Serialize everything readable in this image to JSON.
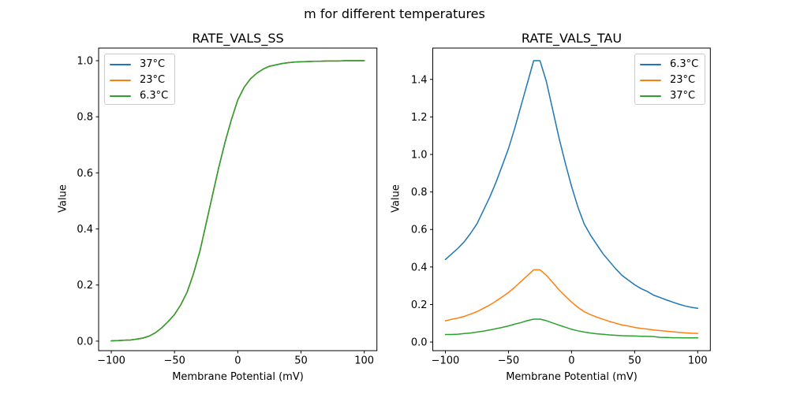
{
  "figure": {
    "suptitle": "m for different temperatures",
    "background_color": "#ffffff",
    "text_color": "#000000",
    "legend_border_color": "#cccccc"
  },
  "chart_data": [
    {
      "type": "line",
      "title": "RATE_VALS_SS",
      "xlabel": "Membrane Potential (mV)",
      "ylabel": "Value",
      "legend_position": "upper-left",
      "grid": false,
      "xlim": [
        -110,
        110
      ],
      "ylim": [
        -0.034,
        1.045
      ],
      "xticks": [
        -100,
        -50,
        0,
        50,
        100
      ],
      "yticks": [
        0.0,
        0.2,
        0.4,
        0.6,
        0.8,
        1.0
      ],
      "x": [
        -100,
        -95,
        -90,
        -85,
        -80,
        -75,
        -70,
        -65,
        -60,
        -55,
        -50,
        -45,
        -40,
        -35,
        -30,
        -25,
        -20,
        -15,
        -10,
        -5,
        0,
        5,
        10,
        15,
        20,
        25,
        30,
        35,
        40,
        45,
        50,
        55,
        60,
        65,
        70,
        75,
        80,
        85,
        90,
        95,
        100
      ],
      "series": [
        {
          "name": "37°C",
          "color": "#1f77b4",
          "values": [
            0.001,
            0.002,
            0.003,
            0.004,
            0.007,
            0.011,
            0.018,
            0.03,
            0.048,
            0.07,
            0.095,
            0.13,
            0.175,
            0.24,
            0.32,
            0.42,
            0.52,
            0.62,
            0.71,
            0.79,
            0.86,
            0.905,
            0.935,
            0.955,
            0.97,
            0.98,
            0.985,
            0.99,
            0.993,
            0.995,
            0.996,
            0.997,
            0.998,
            0.998,
            0.999,
            0.999,
            0.999,
            1.0,
            1.0,
            1.0,
            1.0
          ]
        },
        {
          "name": "23°C",
          "color": "#ff7f0e",
          "values": [
            0.001,
            0.002,
            0.003,
            0.004,
            0.007,
            0.011,
            0.018,
            0.03,
            0.048,
            0.07,
            0.095,
            0.13,
            0.175,
            0.24,
            0.32,
            0.42,
            0.52,
            0.62,
            0.71,
            0.79,
            0.86,
            0.905,
            0.935,
            0.955,
            0.97,
            0.98,
            0.985,
            0.99,
            0.993,
            0.995,
            0.996,
            0.997,
            0.998,
            0.998,
            0.999,
            0.999,
            0.999,
            1.0,
            1.0,
            1.0,
            1.0
          ]
        },
        {
          "name": "6.3°C",
          "color": "#2ca02c",
          "values": [
            0.001,
            0.002,
            0.003,
            0.004,
            0.007,
            0.011,
            0.018,
            0.03,
            0.048,
            0.07,
            0.095,
            0.13,
            0.175,
            0.24,
            0.32,
            0.42,
            0.52,
            0.62,
            0.71,
            0.79,
            0.86,
            0.905,
            0.935,
            0.955,
            0.97,
            0.98,
            0.985,
            0.99,
            0.993,
            0.995,
            0.996,
            0.997,
            0.998,
            0.998,
            0.999,
            0.999,
            0.999,
            1.0,
            1.0,
            1.0,
            1.0
          ]
        }
      ]
    },
    {
      "type": "line",
      "title": "RATE_VALS_TAU",
      "xlabel": "Membrane Potential (mV)",
      "ylabel": "Value",
      "legend_position": "upper-right",
      "grid": false,
      "xlim": [
        -110,
        110
      ],
      "ylim": [
        -0.046,
        1.567
      ],
      "xticks": [
        -100,
        -50,
        0,
        50,
        100
      ],
      "yticks": [
        0.0,
        0.2,
        0.4,
        0.6,
        0.8,
        1.0,
        1.2,
        1.4
      ],
      "x": [
        -100,
        -95,
        -90,
        -85,
        -80,
        -75,
        -70,
        -65,
        -60,
        -55,
        -50,
        -45,
        -40,
        -35,
        -30,
        -25,
        -20,
        -15,
        -10,
        -5,
        0,
        5,
        10,
        15,
        20,
        25,
        30,
        35,
        40,
        45,
        50,
        55,
        60,
        65,
        70,
        75,
        80,
        85,
        90,
        95,
        100
      ],
      "series": [
        {
          "name": "6.3°C",
          "color": "#1f77b4",
          "values": [
            0.44,
            0.47,
            0.5,
            0.535,
            0.58,
            0.63,
            0.7,
            0.77,
            0.85,
            0.94,
            1.03,
            1.14,
            1.26,
            1.38,
            1.5,
            1.5,
            1.39,
            1.24,
            1.09,
            0.955,
            0.83,
            0.72,
            0.63,
            0.57,
            0.52,
            0.47,
            0.43,
            0.39,
            0.355,
            0.33,
            0.305,
            0.285,
            0.27,
            0.25,
            0.238,
            0.225,
            0.213,
            0.202,
            0.192,
            0.185,
            0.18
          ]
        },
        {
          "name": "23°C",
          "color": "#ff7f0e",
          "values": [
            0.113,
            0.121,
            0.128,
            0.137,
            0.149,
            0.162,
            0.179,
            0.197,
            0.218,
            0.241,
            0.264,
            0.292,
            0.323,
            0.354,
            0.385,
            0.385,
            0.356,
            0.318,
            0.279,
            0.245,
            0.213,
            0.185,
            0.162,
            0.146,
            0.133,
            0.121,
            0.11,
            0.1,
            0.091,
            0.085,
            0.078,
            0.073,
            0.069,
            0.064,
            0.061,
            0.058,
            0.055,
            0.052,
            0.049,
            0.047,
            0.046
          ]
        },
        {
          "name": "37°C",
          "color": "#2ca02c",
          "values": [
            0.04,
            0.04,
            0.042,
            0.045,
            0.048,
            0.053,
            0.058,
            0.064,
            0.071,
            0.078,
            0.086,
            0.095,
            0.104,
            0.114,
            0.122,
            0.122,
            0.114,
            0.102,
            0.09,
            0.079,
            0.068,
            0.06,
            0.053,
            0.048,
            0.044,
            0.041,
            0.038,
            0.036,
            0.034,
            0.033,
            0.032,
            0.031,
            0.03,
            0.029,
            0.025,
            0.024,
            0.023,
            0.023,
            0.022,
            0.022,
            0.022
          ]
        }
      ]
    }
  ]
}
